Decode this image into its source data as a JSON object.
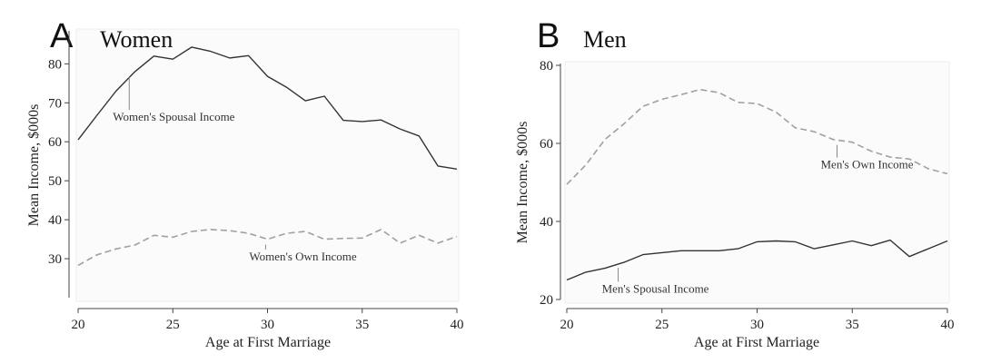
{
  "chart_data": [
    {
      "type": "line",
      "panel_letter": "A",
      "title": "Women",
      "xlabel": "Age at First Marriage",
      "ylabel": "Mean Income, $000s",
      "xlim": [
        20,
        40
      ],
      "ylim": [
        20,
        88
      ],
      "xticks": [
        20,
        25,
        30,
        35,
        40
      ],
      "yticks": [
        30,
        40,
        50,
        60,
        70,
        80
      ],
      "grid": false,
      "x": [
        20,
        21,
        22,
        23,
        24,
        25,
        26,
        27,
        28,
        29,
        30,
        31,
        32,
        33,
        34,
        35,
        36,
        37,
        38,
        39,
        40
      ],
      "series": [
        {
          "name": "Women's Spousal Income",
          "style": "solid",
          "color": "#333333",
          "values": [
            60.5,
            66.8,
            73.0,
            78.0,
            82.0,
            81.2,
            84.3,
            83.2,
            81.5,
            82.1,
            76.8,
            74.0,
            70.5,
            71.7,
            65.5,
            65.2,
            65.6,
            63.3,
            61.5,
            53.8,
            53.0
          ],
          "annotation": {
            "x": 22.7,
            "y": 66.3
          }
        },
        {
          "name": "Women's Own Income",
          "style": "dashed",
          "color": "#a0a0a0",
          "values": [
            28.3,
            31.0,
            32.5,
            33.5,
            36.0,
            35.5,
            37.0,
            37.5,
            37.2,
            36.5,
            35.0,
            36.5,
            37.0,
            35.0,
            35.2,
            35.3,
            37.5,
            34.0,
            36.0,
            34.0,
            35.7
          ],
          "annotation": {
            "x": 29.9,
            "y": 30.5
          }
        }
      ]
    },
    {
      "type": "line",
      "panel_letter": "B",
      "title": "Men",
      "xlabel": "Age at First Marriage",
      "ylabel": "Mean Income, $000s",
      "xlim": [
        20,
        40
      ],
      "ylim": [
        20,
        80
      ],
      "xticks": [
        20,
        25,
        30,
        35,
        40
      ],
      "yticks": [
        20,
        40,
        60,
        80
      ],
      "grid": false,
      "x": [
        20,
        21,
        22,
        23,
        24,
        25,
        26,
        27,
        28,
        29,
        30,
        31,
        32,
        33,
        34,
        35,
        36,
        37,
        38,
        39,
        40
      ],
      "series": [
        {
          "name": "Men's Own Income",
          "style": "dashed",
          "color": "#a0a0a0",
          "values": [
            49.5,
            54.5,
            61.0,
            65.0,
            69.5,
            71.3,
            72.5,
            73.8,
            73.0,
            70.5,
            70.2,
            68.0,
            64.0,
            63.0,
            61.0,
            60.3,
            58.0,
            56.5,
            56.0,
            53.5,
            52.2
          ],
          "annotation": {
            "x": 34.2,
            "y": 54.5
          }
        },
        {
          "name": "Men's Spousal Income",
          "style": "solid",
          "color": "#333333",
          "values": [
            25.0,
            27.0,
            28.0,
            29.5,
            31.5,
            32.0,
            32.5,
            32.5,
            32.5,
            33.0,
            34.8,
            35.0,
            34.8,
            33.0,
            34.0,
            35.0,
            33.8,
            35.2,
            31.0,
            33.0,
            35.0
          ],
          "annotation": {
            "x": 22.7,
            "y": 22.7
          }
        }
      ]
    }
  ]
}
